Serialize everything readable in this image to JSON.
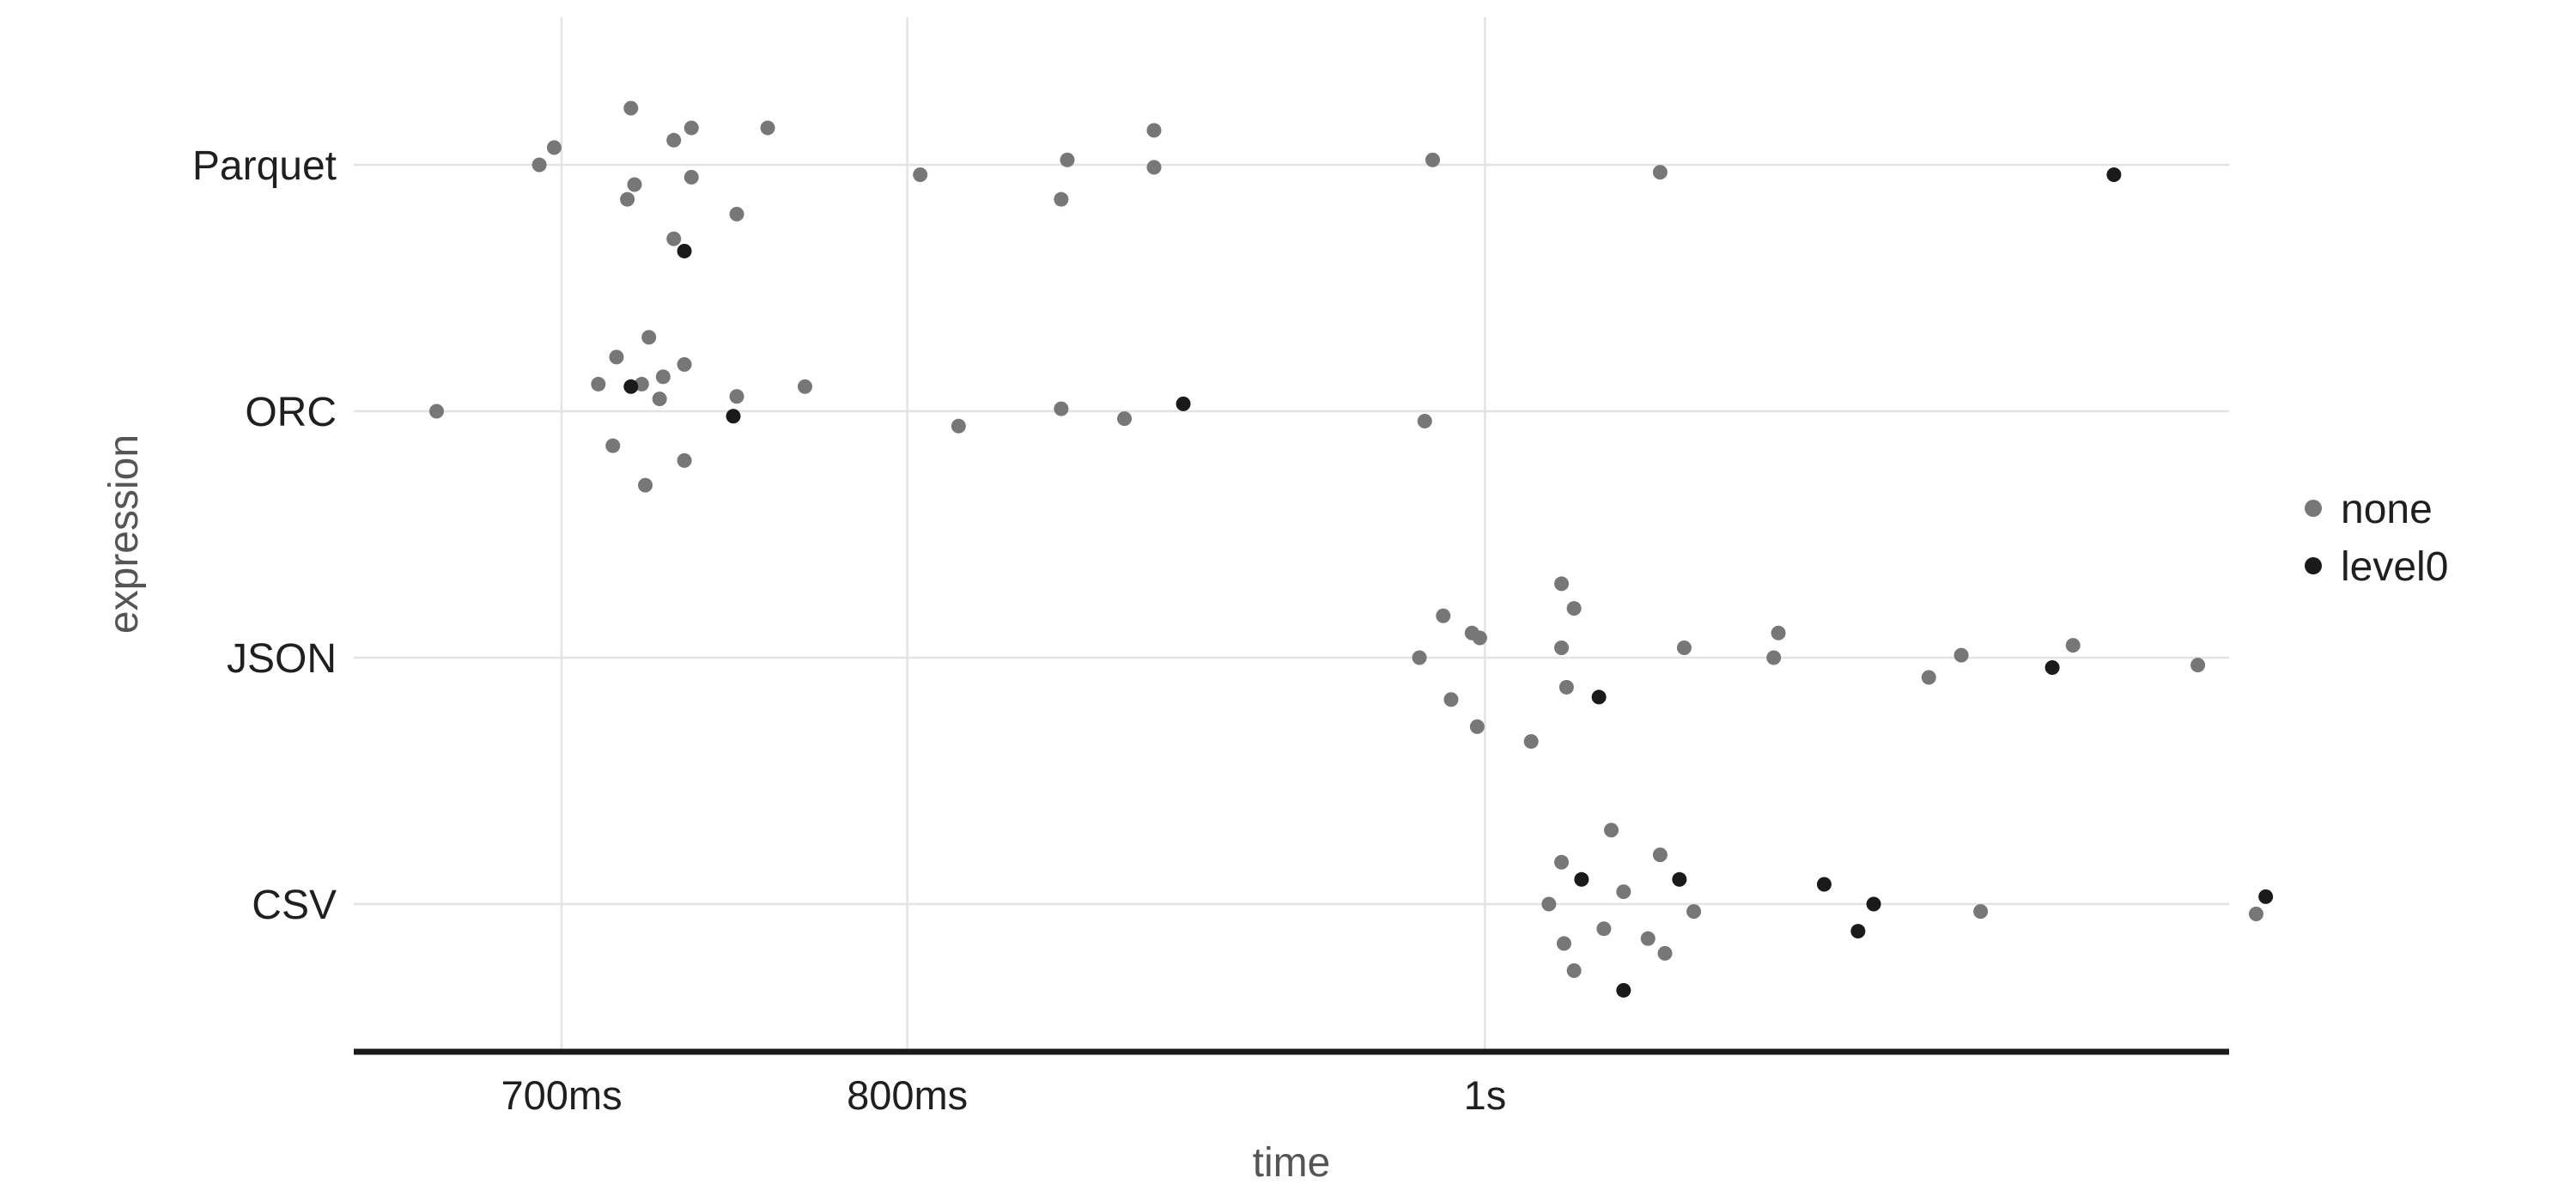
{
  "chart_data": {
    "type": "scatter",
    "title": "",
    "xlabel": "time",
    "ylabel": "expression",
    "x_scale": "log",
    "xlim_ms": [
      646,
      1333
    ],
    "x_ticks": [
      {
        "value_ms": 700,
        "label": "700ms"
      },
      {
        "value_ms": 800,
        "label": "800ms"
      },
      {
        "value_ms": 1000,
        "label": "1s"
      }
    ],
    "categories": [
      "Parquet",
      "ORC",
      "JSON",
      "CSV"
    ],
    "grid": true,
    "legend_position": "right",
    "colors": {
      "none": "#777777",
      "level0": "#1a1a1a",
      "grid": "#e3e3e3",
      "axis": "#1a1a1a"
    },
    "series": [
      {
        "name": "none",
        "points": [
          {
            "category": "Parquet",
            "x_ms": 694,
            "jitter": 0.0
          },
          {
            "category": "Parquet",
            "x_ms": 698,
            "jitter": 0.07
          },
          {
            "category": "Parquet",
            "x_ms": 718,
            "jitter": -0.14
          },
          {
            "category": "Parquet",
            "x_ms": 719,
            "jitter": 0.23
          },
          {
            "category": "Parquet",
            "x_ms": 720,
            "jitter": -0.08
          },
          {
            "category": "Parquet",
            "x_ms": 731,
            "jitter": -0.3
          },
          {
            "category": "Parquet",
            "x_ms": 731,
            "jitter": 0.1
          },
          {
            "category": "Parquet",
            "x_ms": 736,
            "jitter": -0.05
          },
          {
            "category": "Parquet",
            "x_ms": 736,
            "jitter": 0.15
          },
          {
            "category": "Parquet",
            "x_ms": 749,
            "jitter": -0.2
          },
          {
            "category": "Parquet",
            "x_ms": 758,
            "jitter": 0.15
          },
          {
            "category": "Parquet",
            "x_ms": 804,
            "jitter": -0.04
          },
          {
            "category": "Parquet",
            "x_ms": 849,
            "jitter": -0.14
          },
          {
            "category": "Parquet",
            "x_ms": 851,
            "jitter": 0.02
          },
          {
            "category": "Parquet",
            "x_ms": 880,
            "jitter": -0.01
          },
          {
            "category": "Parquet",
            "x_ms": 880,
            "jitter": 0.14
          },
          {
            "category": "Parquet",
            "x_ms": 980,
            "jitter": 0.02
          },
          {
            "category": "Parquet",
            "x_ms": 1070,
            "jitter": -0.03
          },
          {
            "category": "ORC",
            "x_ms": 667,
            "jitter": 0.0
          },
          {
            "category": "ORC",
            "x_ms": 710,
            "jitter": 0.11
          },
          {
            "category": "ORC",
            "x_ms": 714,
            "jitter": -0.14
          },
          {
            "category": "ORC",
            "x_ms": 715,
            "jitter": 0.22
          },
          {
            "category": "ORC",
            "x_ms": 722,
            "jitter": 0.11
          },
          {
            "category": "ORC",
            "x_ms": 723,
            "jitter": -0.3
          },
          {
            "category": "ORC",
            "x_ms": 724,
            "jitter": 0.3
          },
          {
            "category": "ORC",
            "x_ms": 727,
            "jitter": 0.05
          },
          {
            "category": "ORC",
            "x_ms": 728,
            "jitter": 0.14
          },
          {
            "category": "ORC",
            "x_ms": 734,
            "jitter": 0.19
          },
          {
            "category": "ORC",
            "x_ms": 734,
            "jitter": -0.2
          },
          {
            "category": "ORC",
            "x_ms": 749,
            "jitter": 0.06
          },
          {
            "category": "ORC",
            "x_ms": 769,
            "jitter": 0.1
          },
          {
            "category": "ORC",
            "x_ms": 816,
            "jitter": -0.06
          },
          {
            "category": "ORC",
            "x_ms": 849,
            "jitter": 0.01
          },
          {
            "category": "ORC",
            "x_ms": 870,
            "jitter": -0.03
          },
          {
            "category": "ORC",
            "x_ms": 977,
            "jitter": -0.04
          },
          {
            "category": "JSON",
            "x_ms": 975,
            "jitter": 0.0
          },
          {
            "category": "JSON",
            "x_ms": 984,
            "jitter": 0.17
          },
          {
            "category": "JSON",
            "x_ms": 987,
            "jitter": -0.17
          },
          {
            "category": "JSON",
            "x_ms": 995,
            "jitter": 0.1
          },
          {
            "category": "JSON",
            "x_ms": 997,
            "jitter": -0.28
          },
          {
            "category": "JSON",
            "x_ms": 998,
            "jitter": 0.08
          },
          {
            "category": "JSON",
            "x_ms": 1018,
            "jitter": -0.34
          },
          {
            "category": "JSON",
            "x_ms": 1030,
            "jitter": 0.3
          },
          {
            "category": "JSON",
            "x_ms": 1030,
            "jitter": 0.04
          },
          {
            "category": "JSON",
            "x_ms": 1032,
            "jitter": -0.12
          },
          {
            "category": "JSON",
            "x_ms": 1035,
            "jitter": 0.2
          },
          {
            "category": "JSON",
            "x_ms": 1080,
            "jitter": 0.04
          },
          {
            "category": "JSON",
            "x_ms": 1118,
            "jitter": 0.0
          },
          {
            "category": "JSON",
            "x_ms": 1120,
            "jitter": 0.1
          },
          {
            "category": "JSON",
            "x_ms": 1187,
            "jitter": -0.08
          },
          {
            "category": "JSON",
            "x_ms": 1202,
            "jitter": 0.01
          },
          {
            "category": "JSON",
            "x_ms": 1255,
            "jitter": 0.05
          },
          {
            "category": "JSON",
            "x_ms": 1317,
            "jitter": -0.03
          },
          {
            "category": "CSV",
            "x_ms": 1025,
            "jitter": 0.0
          },
          {
            "category": "CSV",
            "x_ms": 1030,
            "jitter": 0.17
          },
          {
            "category": "CSV",
            "x_ms": 1031,
            "jitter": -0.16
          },
          {
            "category": "CSV",
            "x_ms": 1035,
            "jitter": -0.27
          },
          {
            "category": "CSV",
            "x_ms": 1047,
            "jitter": -0.1
          },
          {
            "category": "CSV",
            "x_ms": 1050,
            "jitter": 0.3
          },
          {
            "category": "CSV",
            "x_ms": 1055,
            "jitter": 0.05
          },
          {
            "category": "CSV",
            "x_ms": 1065,
            "jitter": -0.14
          },
          {
            "category": "CSV",
            "x_ms": 1070,
            "jitter": 0.2
          },
          {
            "category": "CSV",
            "x_ms": 1072,
            "jitter": -0.2
          },
          {
            "category": "CSV",
            "x_ms": 1084,
            "jitter": -0.03
          },
          {
            "category": "CSV",
            "x_ms": 1211,
            "jitter": -0.03
          },
          {
            "category": "CSV",
            "x_ms": 1347,
            "jitter": -0.04
          }
        ]
      },
      {
        "name": "level0",
        "points": [
          {
            "category": "Parquet",
            "x_ms": 734,
            "jitter": -0.35
          },
          {
            "category": "Parquet",
            "x_ms": 1275,
            "jitter": -0.04
          },
          {
            "category": "ORC",
            "x_ms": 719,
            "jitter": 0.1
          },
          {
            "category": "ORC",
            "x_ms": 748,
            "jitter": -0.02
          },
          {
            "category": "ORC",
            "x_ms": 890,
            "jitter": 0.03
          },
          {
            "category": "JSON",
            "x_ms": 1045,
            "jitter": -0.16
          },
          {
            "category": "JSON",
            "x_ms": 1245,
            "jitter": -0.04
          },
          {
            "category": "CSV",
            "x_ms": 1038,
            "jitter": 0.1
          },
          {
            "category": "CSV",
            "x_ms": 1055,
            "jitter": -0.35
          },
          {
            "category": "CSV",
            "x_ms": 1078,
            "jitter": 0.1
          },
          {
            "category": "CSV",
            "x_ms": 1140,
            "jitter": 0.08
          },
          {
            "category": "CSV",
            "x_ms": 1155,
            "jitter": -0.11
          },
          {
            "category": "CSV",
            "x_ms": 1162,
            "jitter": 0.0
          },
          {
            "category": "CSV",
            "x_ms": 1352,
            "jitter": 0.03
          }
        ]
      }
    ]
  }
}
